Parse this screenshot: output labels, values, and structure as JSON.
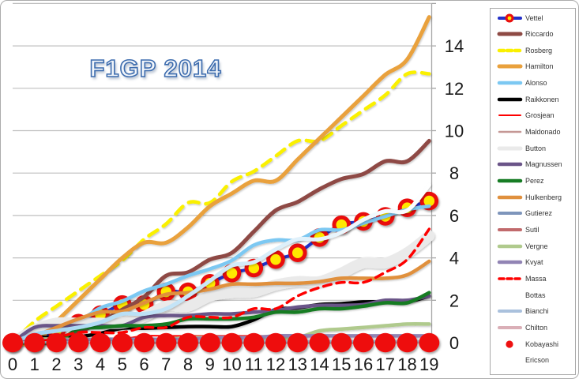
{
  "window": {
    "background": "#FFFFFF",
    "border_color": "#ACACAC"
  },
  "chart_data": {
    "type": "line",
    "title": "F1GP 2014",
    "title_color": "#3D6CAE",
    "grid": true,
    "legend_position": "right",
    "axis_color": "#A6A6A6",
    "grid_color": "#BFBFBF",
    "xlim": [
      0,
      19
    ],
    "ylim": [
      0,
      16
    ],
    "xticks": [
      "0",
      "1",
      "2",
      "3",
      "4",
      "5",
      "6",
      "7",
      "8",
      "9",
      "10",
      "11",
      "12",
      "13",
      "14",
      "15",
      "16",
      "17",
      "18",
      "19"
    ],
    "yticks": [
      "0",
      "2",
      "4",
      "6",
      "8",
      "10",
      "12",
      "14"
    ],
    "x": [
      0,
      1,
      2,
      3,
      4,
      5,
      6,
      7,
      8,
      9,
      10,
      11,
      12,
      13,
      14,
      15,
      16,
      17,
      18,
      19
    ],
    "series": [
      {
        "name": "Vettel",
        "color": "#2430C8",
        "width": 4,
        "marker": "red-yellow-circle",
        "values": [
          0,
          0,
          0.6,
          0.92,
          1.32,
          1.8,
          1.8,
          2.4,
          2.4,
          2.8,
          3.28,
          3.52,
          3.92,
          4.24,
          4.96,
          5.56,
          5.72,
          5.96,
          6.36,
          6.68
        ]
      },
      {
        "name": "Riccardo",
        "color": "#8E4A44",
        "width": 5,
        "values": [
          0,
          0,
          0,
          0.48,
          0.96,
          1.56,
          2.16,
          3.16,
          3.32,
          3.92,
          4.24,
          5.24,
          6.24,
          6.64,
          7.24,
          7.72,
          7.96,
          8.56,
          8.56,
          9.52
        ]
      },
      {
        "name": "Rosberg",
        "color": "#FAF000",
        "width": 4.5,
        "dash": "13,9",
        "values": [
          0,
          1,
          1.72,
          2.44,
          3.16,
          3.88,
          4.88,
          5.6,
          6.6,
          6.6,
          7.6,
          8.08,
          8.8,
          9.52,
          9.52,
          10.24,
          10.96,
          11.68,
          12.68,
          12.68
        ]
      },
      {
        "name": "Hamilton",
        "color": "#E9A13C",
        "width": 5,
        "values": [
          0,
          0,
          1,
          2,
          3,
          4,
          4.72,
          4.72,
          5.44,
          6.44,
          7.04,
          7.64,
          7.64,
          8.64,
          9.64,
          10.64,
          11.64,
          12.64,
          13.36,
          15.36
        ]
      },
      {
        "name": "Alonso",
        "color": "#7CC8F2",
        "width": 4.5,
        "values": [
          0,
          0.48,
          0.96,
          1.04,
          1.64,
          1.96,
          2.44,
          2.76,
          3.16,
          3.48,
          3.88,
          4.6,
          4.84,
          4.84,
          5.32,
          5.32,
          5.64,
          5.96,
          6.28,
          6.44
        ]
      },
      {
        "name": "Raikkonen",
        "color": "#000000",
        "width": 4.5,
        "values": [
          0,
          0.24,
          0.24,
          0.28,
          0.44,
          0.68,
          0.68,
          0.72,
          0.76,
          0.76,
          0.76,
          1.08,
          1.56,
          1.64,
          1.8,
          1.84,
          1.92,
          1.92,
          1.92,
          2.2
        ]
      },
      {
        "name": "Grosjean",
        "color": "#FE0000",
        "width": 2,
        "values": [
          0,
          0,
          0,
          0,
          0,
          0.16,
          0.32,
          0.32,
          0.32,
          0.32,
          0.32,
          0.32,
          0.32,
          0.32,
          0.32,
          0.32,
          0.32,
          0.32,
          0.32,
          0.32
        ]
      },
      {
        "name": "Maldonado",
        "color": "#C59795",
        "width": 2.5,
        "values": [
          0,
          0,
          0,
          0,
          0,
          0,
          0,
          0,
          0,
          0,
          0,
          0,
          0,
          0,
          0,
          0,
          0,
          0.08,
          0.08,
          0.08
        ]
      },
      {
        "name": "Button",
        "color": "#EAEAEA",
        "width": 14,
        "values": [
          0,
          0.6,
          0.92,
          0.92,
          0.92,
          0.92,
          1.24,
          1.72,
          1.72,
          2.2,
          2.36,
          2.4,
          2.72,
          2.88,
          2.88,
          3.28,
          3.76,
          3.76,
          4.24,
          5.04
        ]
      },
      {
        "name": "Magnussen",
        "color": "#6A5488",
        "width": 4.5,
        "values": [
          0,
          0.72,
          0.8,
          0.8,
          0.8,
          0.8,
          1.2,
          1.28,
          1.28,
          1.36,
          1.36,
          1.44,
          1.52,
          1.68,
          1.76,
          1.76,
          1.8,
          2.0,
          2.0,
          2.2
        ]
      },
      {
        "name": "Perez",
        "color": "#167C24",
        "width": 4.5,
        "values": [
          0,
          0.04,
          0.04,
          0.64,
          0.72,
          0.8,
          0.8,
          0.88,
          1.12,
          1.12,
          1.12,
          1.2,
          1.44,
          1.44,
          1.6,
          1.6,
          1.72,
          1.88,
          1.88,
          2.36
        ]
      },
      {
        "name": "Hulkenberg",
        "color": "#E0903E",
        "width": 4.5,
        "values": [
          0,
          0.32,
          0.72,
          1.12,
          1.44,
          1.48,
          1.88,
          2.28,
          2.36,
          2.52,
          2.76,
          2.76,
          2.8,
          2.8,
          2.88,
          3.04,
          3.04,
          3.04,
          3.2,
          3.84
        ]
      },
      {
        "name": "Gutierez",
        "color": "#7E95BB",
        "width": 4,
        "values": [
          0,
          0,
          0,
          0,
          0,
          0,
          0,
          0,
          0,
          0,
          0,
          0,
          0,
          0,
          0,
          0,
          0,
          0,
          0,
          0
        ]
      },
      {
        "name": "Sutil",
        "color": "#C16A6C",
        "width": 4,
        "values": [
          0,
          0,
          0,
          0,
          0,
          0,
          0,
          0,
          0,
          0,
          0,
          0,
          0,
          0,
          0,
          0,
          0,
          0,
          0,
          0
        ]
      },
      {
        "name": "Vergne",
        "color": "#B0CA8D",
        "width": 4.5,
        "values": [
          0,
          0.16,
          0.16,
          0.16,
          0.16,
          0.16,
          0.16,
          0.16,
          0.24,
          0.24,
          0.24,
          0.24,
          0.24,
          0.24,
          0.56,
          0.64,
          0.72,
          0.8,
          0.88,
          0.88
        ]
      },
      {
        "name": "Kvyat",
        "color": "#9184B4",
        "width": 4.5,
        "values": [
          0,
          0.08,
          0.12,
          0.12,
          0.16,
          0.16,
          0.16,
          0.16,
          0.16,
          0.24,
          0.24,
          0.24,
          0.32,
          0.32,
          0.32,
          0.32,
          0.32,
          0.32,
          0.32,
          0.32
        ]
      },
      {
        "name": "Massa",
        "color": "#FE0000",
        "width": 3.5,
        "dash": "10,7",
        "values": [
          0,
          0,
          0.24,
          0.48,
          0.48,
          0.48,
          0.72,
          0.72,
          1.2,
          1.2,
          1.2,
          1.6,
          1.6,
          2.2,
          2.6,
          2.84,
          2.84,
          3.32,
          3.92,
          5.36
        ]
      },
      {
        "name": "Bottas",
        "gradient": [
          "#9ED3F2",
          "#FFFFFF"
        ],
        "color": "#9ED3F2",
        "width": 5,
        "values": [
          0,
          0.4,
          0.56,
          0.72,
          0.96,
          1.36,
          1.36,
          1.6,
          2.2,
          2.92,
          3.64,
          3.8,
          4.4,
          4.88,
          4.88,
          5.2,
          5.8,
          6.2,
          6.24,
          7.44
        ]
      },
      {
        "name": "Bianchi",
        "color": "#AAC1DD",
        "width": 4,
        "values": [
          0,
          0,
          0,
          0,
          0,
          0,
          0.08,
          0.08,
          0.08,
          0.08,
          0.08,
          0.08,
          0.08,
          0.08,
          0.08,
          0.08,
          0.08,
          0.08,
          0.08,
          0.08
        ]
      },
      {
        "name": "Chilton",
        "color": "#DAAFB7",
        "width": 4,
        "values": [
          0,
          0,
          0,
          0,
          0,
          0,
          0,
          0,
          0,
          0,
          0,
          0,
          0,
          0,
          0,
          0,
          0,
          0,
          0,
          0
        ]
      },
      {
        "name": "Kobayashi",
        "color": "#EE1111",
        "width": 0,
        "marker": "red-dot",
        "values": [
          0,
          0,
          0,
          0,
          0,
          0,
          0,
          0,
          0,
          0,
          0,
          0,
          0,
          0,
          0,
          0,
          0,
          0,
          0,
          0
        ]
      },
      {
        "name": "Ericson",
        "gradient": [
          "#2430C8",
          "#8A84A0",
          "#EFE400"
        ],
        "color": "#2430C8",
        "width": 4,
        "values": [
          0,
          0,
          0,
          0,
          0,
          0,
          0,
          0,
          0,
          0,
          0,
          0,
          0,
          0,
          0,
          0,
          0,
          0,
          0,
          0
        ]
      }
    ]
  }
}
